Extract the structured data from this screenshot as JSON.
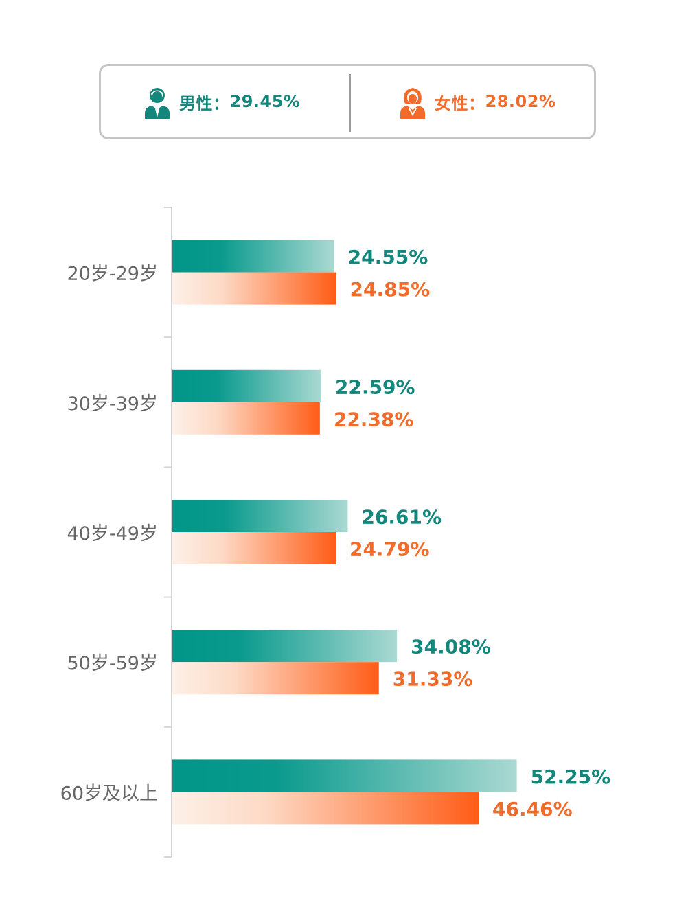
{
  "summary": {
    "male": {
      "label": "男性：",
      "value": "29.45%",
      "icon": "male-user-icon",
      "color": "#14877c"
    },
    "female": {
      "label": "女性：",
      "value": "28.02%",
      "icon": "female-user-icon",
      "color": "#f26b2a"
    }
  },
  "chart_data": {
    "type": "bar",
    "orientation": "horizontal",
    "categories": [
      "20岁-29岁",
      "30岁-39岁",
      "40岁-49岁",
      "50岁-59岁",
      "60岁及以上"
    ],
    "series": [
      {
        "values": [
          24.55,
          22.59,
          26.61,
          34.08,
          52.25
        ],
        "labels": [
          "24.55%",
          "22.59%",
          "26.61%",
          "34.08%",
          "52.25%"
        ],
        "color": "#009688"
      },
      {
        "values": [
          24.85,
          22.38,
          24.79,
          31.33,
          46.46
        ],
        "labels": [
          "24.85%",
          "22.38%",
          "24.79%",
          "31.33%",
          "46.46%"
        ],
        "color": "#ff5f1a"
      }
    ],
    "xlim": [
      0,
      60
    ],
    "grid": false,
    "legend": "top"
  }
}
